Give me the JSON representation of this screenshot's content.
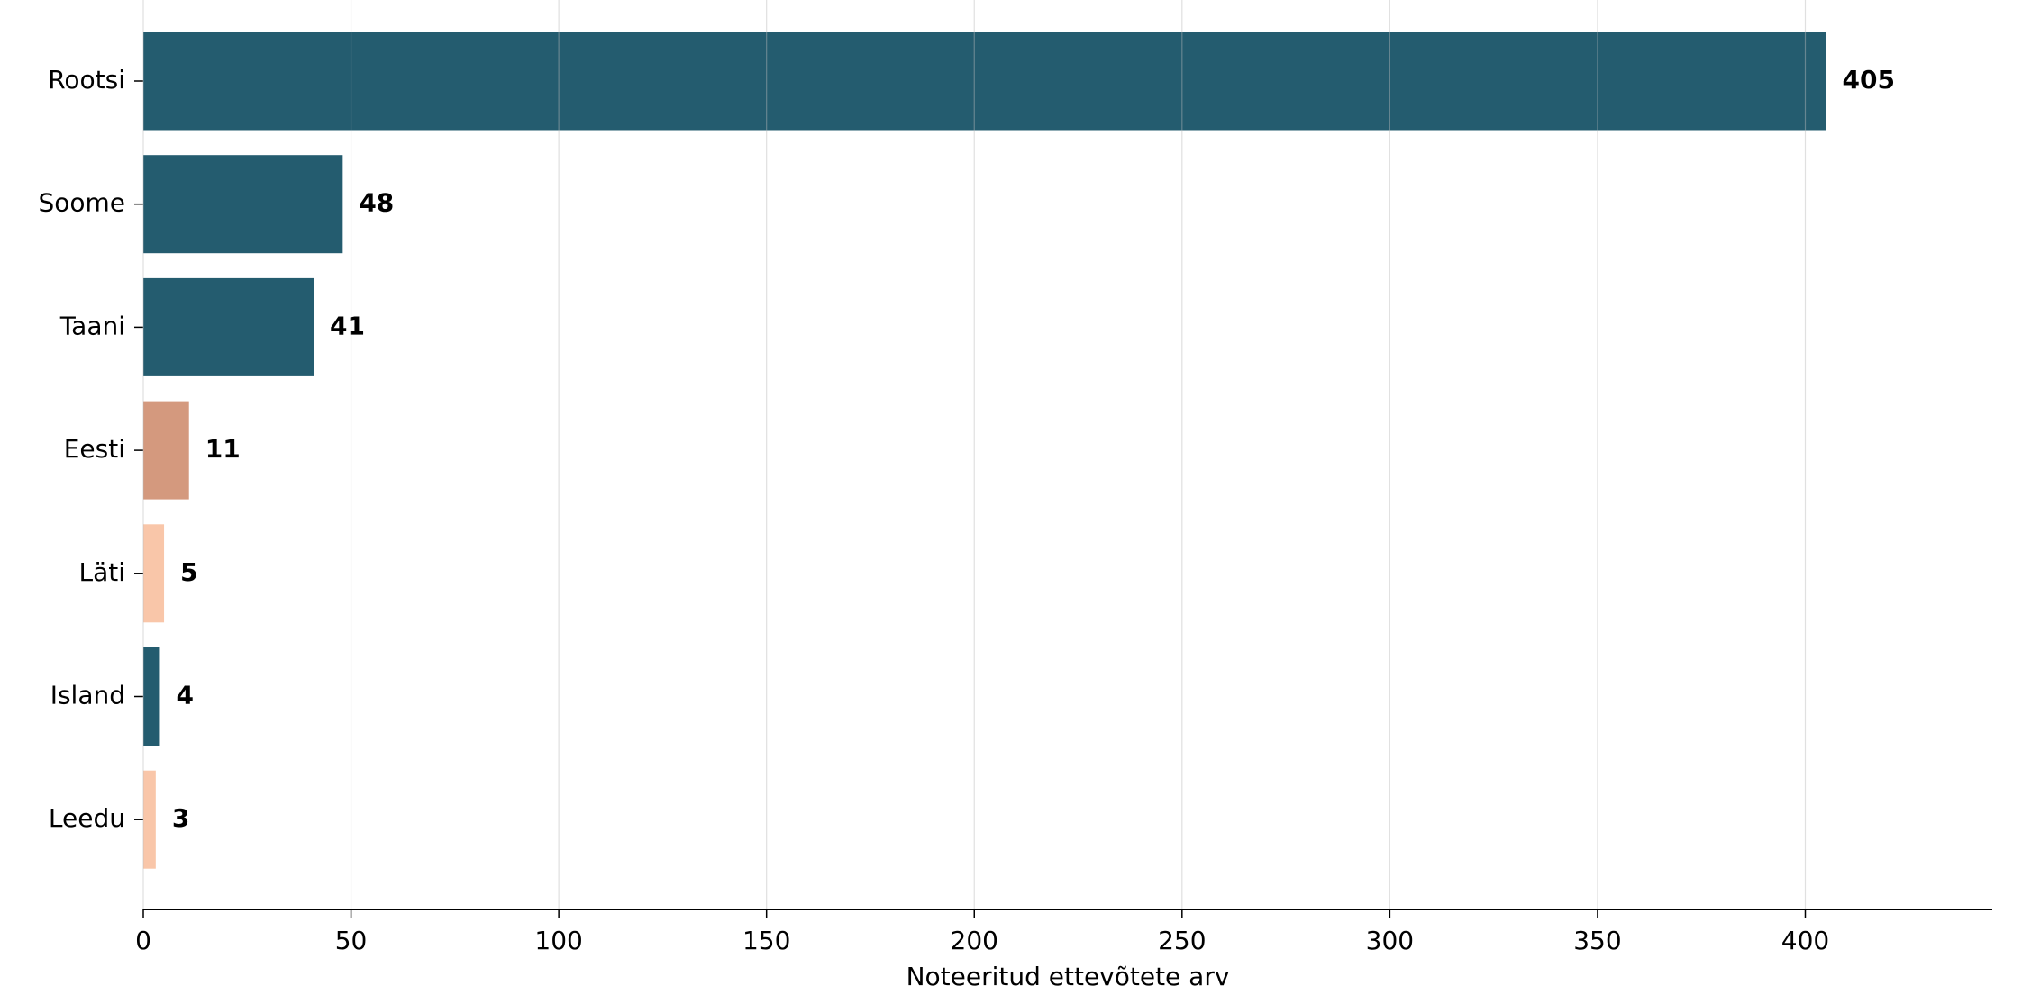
{
  "chart_data": {
    "type": "bar",
    "orientation": "horizontal",
    "x_label": "Noteeritud ettevõtete arv",
    "categories": [
      "Rootsi",
      "Soome",
      "Taani",
      "Eesti",
      "Läti",
      "Island",
      "Leedu"
    ],
    "values": [
      405,
      48,
      41,
      11,
      5,
      4,
      3
    ],
    "colors": [
      "#245c6f",
      "#245c6f",
      "#245c6f",
      "#d4997e",
      "#f9c6a9",
      "#245c6f",
      "#f9c6a9"
    ],
    "xlim": [
      0,
      445
    ],
    "xticks": [
      0,
      50,
      100,
      150,
      200,
      250,
      300,
      350,
      400
    ],
    "grid": true
  }
}
